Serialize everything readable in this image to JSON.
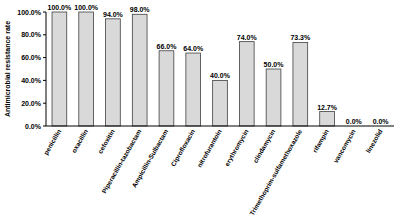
{
  "chart_data": {
    "type": "bar",
    "y_label": "Antimicrobial resistance rate",
    "categories": [
      "penicillin",
      "oxacillin",
      "cefoxitin",
      "Piperacillin-tazobactam",
      "Ampicillin-Sulbactam",
      "Ciprofloxacin",
      "nitrofurantoin",
      "erythromycin",
      "clindamycin",
      "Trimethoprim-sulfamethoxazole",
      "rifampin",
      "vancomycin",
      "linezolid"
    ],
    "values": [
      100,
      100,
      94,
      98,
      66,
      64,
      40,
      74,
      50,
      73.3,
      12.7,
      0,
      0
    ],
    "value_labels": [
      "100.0%",
      "100.0%",
      "94.0%",
      "98.0%",
      "66.0%",
      "64.0%",
      "40.0%",
      "74.0%",
      "50.0%",
      "73.3%",
      "12.7%",
      "0.0%",
      "0.0%"
    ],
    "color": "#d9d9d9",
    "ylim": [
      0,
      100
    ],
    "yticks": [
      {
        "value": 0,
        "label": "0.0%"
      },
      {
        "value": 20,
        "label": "20.0%"
      },
      {
        "value": 40,
        "label": "40.0%"
      },
      {
        "value": 60,
        "label": "60.0%"
      },
      {
        "value": 80,
        "label": "80.0%"
      },
      {
        "value": 100,
        "label": "100.0%"
      }
    ],
    "grid": false,
    "data_labels": true
  }
}
